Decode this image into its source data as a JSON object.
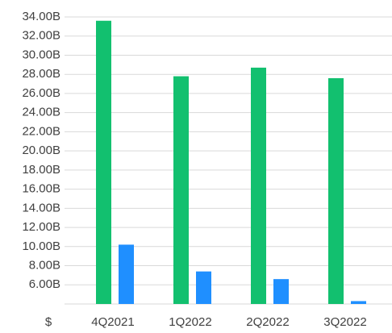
{
  "chart_data": {
    "type": "bar",
    "x_corner_label": "$",
    "categories": [
      "4Q2021",
      "1Q2022",
      "2Q2022",
      "3Q2022"
    ],
    "series": [
      {
        "color": "#12c06f",
        "values": [
          33.6,
          27.8,
          28.7,
          27.6
        ]
      },
      {
        "color": "#1f8fff",
        "values": [
          10.2,
          7.4,
          6.6,
          4.3
        ]
      }
    ],
    "ylim": [
      4,
      34
    ],
    "yticks": [
      {
        "value": 6,
        "label": "6.00B"
      },
      {
        "value": 8,
        "label": "8.00B"
      },
      {
        "value": 10,
        "label": "10.00B"
      },
      {
        "value": 12,
        "label": "12.00B"
      },
      {
        "value": 14,
        "label": "14.00B"
      },
      {
        "value": 16,
        "label": "16.00B"
      },
      {
        "value": 18,
        "label": "18.00B"
      },
      {
        "value": 20,
        "label": "20.00B"
      },
      {
        "value": 22,
        "label": "22.00B"
      },
      {
        "value": 24,
        "label": "24.00B"
      },
      {
        "value": 26,
        "label": "26.00B"
      },
      {
        "value": 28,
        "label": "28.00B"
      },
      {
        "value": 30,
        "label": "30.00B"
      },
      {
        "value": 32,
        "label": "32.00B"
      },
      {
        "value": 34,
        "label": "34.00B"
      }
    ],
    "grid": true
  }
}
